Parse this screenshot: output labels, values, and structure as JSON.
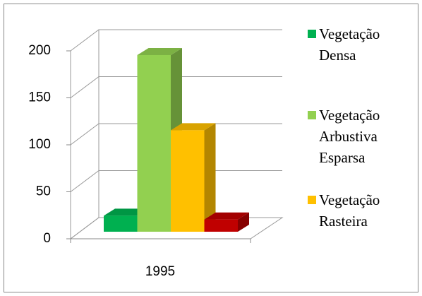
{
  "chart_data": {
    "type": "bar3d",
    "categories": [
      "1995"
    ],
    "series": [
      {
        "name": "Vegetação Densa",
        "color": "#00b050",
        "values": [
          17
        ]
      },
      {
        "name": "Vegetação Arbustiva Esparsa",
        "color": "#92d050",
        "values": [
          188
        ]
      },
      {
        "name": "Vegetação Rasteira",
        "color": "#ffc000",
        "values": [
          108
        ]
      },
      {
        "color": "#c00000",
        "values": [
          13
        ]
      }
    ],
    "ylim": [
      0,
      200
    ],
    "yticks": [
      0,
      50,
      100,
      150,
      200
    ],
    "grid": true,
    "legend": "right"
  }
}
